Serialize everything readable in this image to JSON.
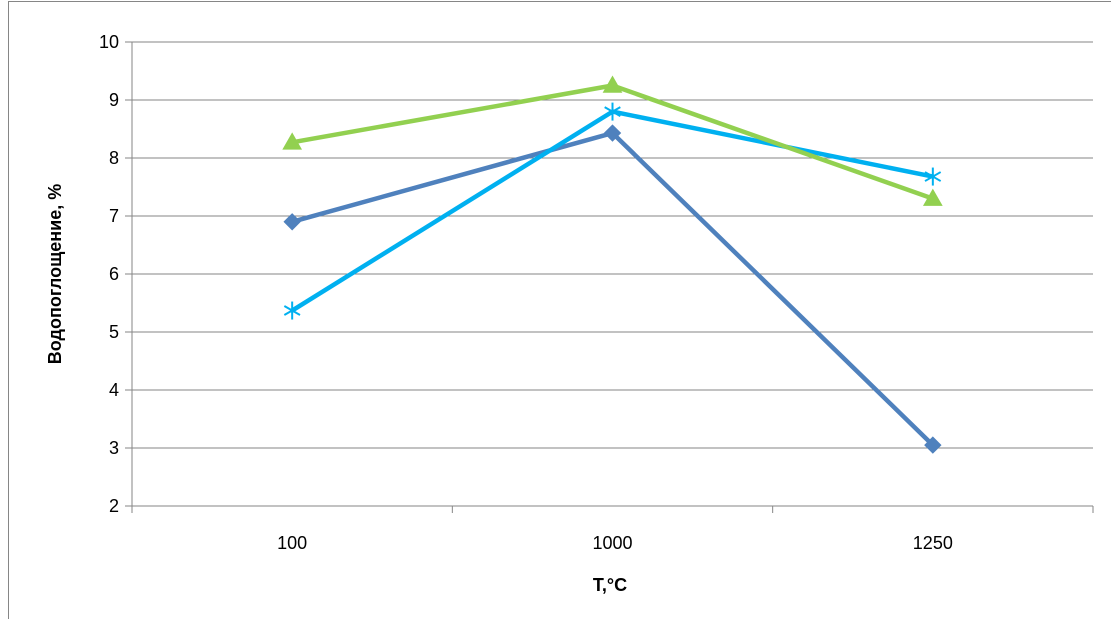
{
  "chart_data": {
    "type": "line",
    "title": "",
    "xlabel": "T,°C",
    "ylabel": "Водопоглощение, %",
    "categories": [
      "100",
      "1000",
      "1250"
    ],
    "ylim": [
      2,
      10
    ],
    "yticks": [
      2,
      3,
      4,
      5,
      6,
      7,
      8,
      9,
      10
    ],
    "grid": true,
    "legend": "none",
    "series": [
      {
        "color": "#4f81bd",
        "marker": "diamond",
        "values": [
          6.9,
          8.43,
          3.05
        ]
      },
      {
        "color": "#00b0f0",
        "marker": "asterisk",
        "values": [
          5.37,
          8.8,
          7.68
        ]
      },
      {
        "color": "#92d050",
        "marker": "triangle",
        "values": [
          8.27,
          9.25,
          7.3
        ]
      }
    ]
  }
}
